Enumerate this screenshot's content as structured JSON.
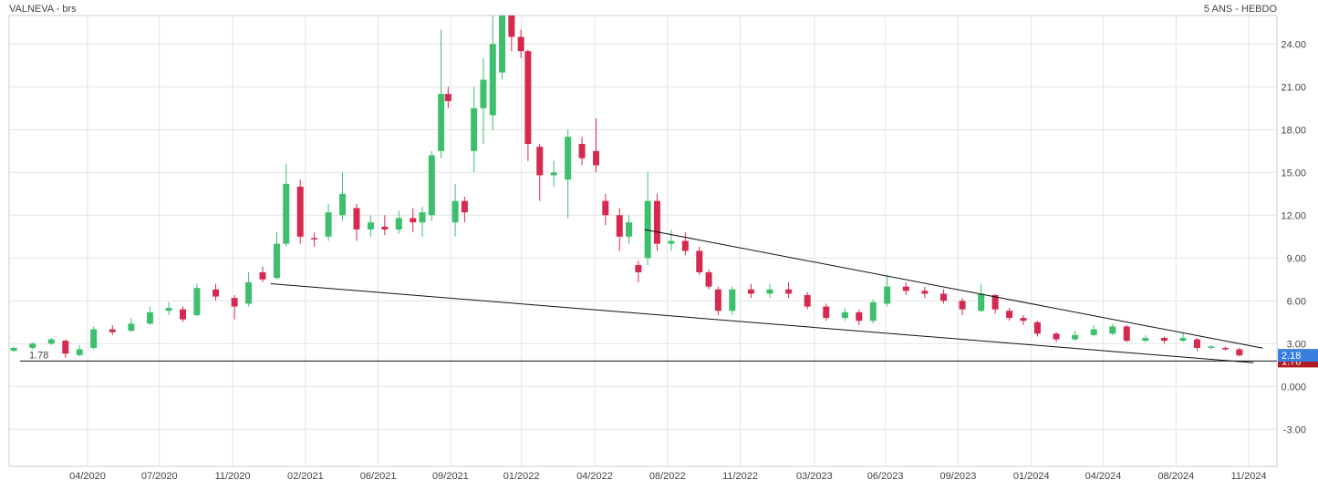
{
  "chart_data": {
    "type": "candlestick",
    "title": "VALNEVA - brs",
    "subtitle": "5 ANS - HEBDO",
    "x": [
      1,
      5,
      9,
      12,
      15,
      18,
      22,
      26,
      30,
      34,
      37,
      40,
      44,
      48,
      51,
      54,
      57,
      59,
      62,
      65,
      68,
      71,
      74,
      77,
      80,
      83,
      86,
      88,
      90,
      92,
      93.5,
      95,
      97,
      99,
      101,
      103,
      105,
      107,
      109,
      110.5,
      113,
      116,
      119,
      122,
      125,
      127,
      130,
      132,
      134,
      136,
      138,
      141,
      144,
      147,
      149,
      151,
      154,
      158,
      162,
      166,
      170,
      174,
      178,
      181,
      184,
      187,
      191,
      195,
      199,
      203,
      207,
      210,
      213,
      216,
      219,
      223,
      227,
      231,
      235,
      238,
      242,
      246,
      250,
      253,
      256,
      259,
      262
    ],
    "open": [
      2.5,
      2.7,
      3.0,
      3.2,
      2.2,
      2.7,
      4.0,
      3.9,
      4.4,
      5.3,
      5.4,
      5.0,
      6.8,
      6.2,
      5.8,
      8.0,
      7.6,
      10.0,
      14.0,
      10.4,
      10.5,
      12.0,
      12.5,
      11.0,
      11.2,
      11.0,
      11.8,
      11.5,
      12.0,
      16.5,
      20.5,
      11.5,
      13.0,
      16.5,
      19.5,
      19.0,
      22.0,
      26.0,
      24.5,
      23.5,
      16.8,
      14.8,
      14.5,
      17.0,
      16.5,
      13.0,
      12.0,
      10.5,
      8.5,
      9.0,
      13.0,
      10.0,
      10.2,
      9.5,
      8.0,
      6.8,
      5.3,
      6.8,
      6.5,
      6.8,
      6.4,
      5.6,
      4.8,
      5.2,
      4.6,
      5.8,
      7.0,
      6.7,
      6.5,
      6.0,
      5.3,
      6.4,
      5.3,
      4.8,
      4.5,
      3.7,
      3.3,
      3.6,
      3.7,
      4.2,
      3.2,
      3.4,
      3.2,
      3.3,
      2.7,
      2.7,
      2.6
    ],
    "close": [
      2.7,
      3.0,
      3.3,
      2.3,
      2.6,
      4.0,
      3.8,
      4.4,
      5.2,
      5.5,
      4.7,
      6.9,
      6.3,
      5.6,
      7.3,
      7.5,
      10.0,
      14.2,
      10.5,
      10.3,
      12.2,
      13.5,
      11.0,
      11.5,
      11.0,
      11.8,
      11.5,
      12.2,
      16.2,
      20.5,
      20.0,
      13.0,
      12.2,
      19.5,
      21.5,
      24.0,
      26.0,
      24.5,
      23.5,
      17.0,
      14.8,
      15.0,
      17.5,
      16.0,
      15.5,
      12.0,
      10.5,
      11.5,
      8.0,
      13.0,
      10.0,
      10.2,
      9.5,
      8.0,
      7.0,
      5.3,
      6.8,
      6.5,
      6.8,
      6.5,
      5.6,
      4.8,
      5.2,
      4.6,
      5.9,
      7.0,
      6.7,
      6.5,
      6.0,
      5.4,
      6.5,
      5.4,
      4.8,
      4.6,
      3.7,
      3.3,
      3.6,
      4.0,
      4.2,
      3.2,
      3.4,
      3.2,
      3.4,
      2.7,
      2.8,
      2.6,
      2.18
    ],
    "high": [
      2.8,
      3.1,
      3.4,
      3.3,
      2.9,
      4.2,
      4.3,
      4.8,
      5.6,
      5.9,
      5.6,
      7.2,
      7.2,
      6.4,
      8.0,
      8.4,
      10.8,
      15.6,
      14.5,
      10.8,
      12.8,
      15.0,
      12.8,
      12.0,
      12.0,
      12.3,
      12.5,
      12.6,
      16.5,
      25.0,
      21.0,
      14.2,
      13.3,
      21.0,
      23.0,
      26.0,
      26.0,
      26.0,
      25.0,
      23.6,
      17.0,
      15.8,
      18.0,
      17.5,
      18.8,
      13.5,
      12.5,
      12.0,
      8.8,
      15.0,
      13.5,
      11.0,
      10.8,
      9.8,
      8.2,
      7.0,
      7.0,
      7.2,
      7.2,
      7.3,
      6.6,
      5.8,
      5.5,
      5.4,
      6.1,
      7.8,
      7.3,
      7.0,
      6.8,
      6.2,
      7.2,
      6.5,
      5.5,
      5.0,
      4.6,
      3.8,
      3.9,
      4.3,
      4.4,
      4.3,
      3.6,
      3.5,
      3.8,
      3.4,
      2.9,
      2.8,
      2.7
    ],
    "low": [
      2.4,
      2.6,
      2.9,
      2.0,
      2.1,
      2.6,
      3.6,
      3.8,
      4.3,
      5.0,
      4.5,
      4.9,
      6.0,
      4.7,
      5.6,
      7.3,
      7.5,
      9.8,
      10.0,
      9.8,
      10.2,
      11.6,
      10.2,
      10.5,
      10.6,
      10.7,
      10.8,
      10.5,
      11.6,
      16.0,
      19.5,
      10.5,
      11.5,
      15.0,
      17.0,
      18.0,
      21.5,
      23.5,
      23.0,
      15.8,
      13.0,
      14.0,
      11.8,
      15.5,
      15.0,
      11.3,
      9.5,
      10.0,
      7.3,
      8.5,
      9.5,
      9.5,
      9.2,
      7.8,
      6.8,
      5.0,
      5.0,
      6.2,
      6.2,
      6.2,
      5.4,
      4.6,
      4.6,
      4.3,
      4.4,
      5.6,
      6.4,
      6.2,
      5.8,
      5.0,
      5.2,
      5.1,
      4.6,
      4.3,
      3.5,
      3.1,
      3.2,
      3.5,
      3.6,
      3.1,
      3.1,
      3.0,
      3.1,
      2.5,
      2.6,
      2.5,
      2.1
    ],
    "up_color": "#3dbf6e",
    "down_color": "#d6294f",
    "xlim": [
      0,
      270
    ],
    "ylim": [
      -5.6,
      26
    ],
    "xticks": [
      {
        "value": 16.7,
        "label": "04/2020"
      },
      {
        "value": 32,
        "label": "07/2020"
      },
      {
        "value": 47.6,
        "label": "11/2020"
      },
      {
        "value": 63.1,
        "label": "02/2021"
      },
      {
        "value": 78.6,
        "label": "06/2021"
      },
      {
        "value": 94,
        "label": "09/2021"
      },
      {
        "value": 109.1,
        "label": "01/2022"
      },
      {
        "value": 124.7,
        "label": "04/2022"
      },
      {
        "value": 140.2,
        "label": "08/2022"
      },
      {
        "value": 155.7,
        "label": "11/2022"
      },
      {
        "value": 171.5,
        "label": "03/2023"
      },
      {
        "value": 186.6,
        "label": "06/2023"
      },
      {
        "value": 202.1,
        "label": "09/2023"
      },
      {
        "value": 217.7,
        "label": "01/2024"
      },
      {
        "value": 233,
        "label": "04/2024"
      },
      {
        "value": 248.5,
        "label": "08/2024"
      },
      {
        "value": 264,
        "label": "11/2024"
      }
    ],
    "yticks": [
      {
        "value": -3,
        "label": "-3.00"
      },
      {
        "value": 0,
        "label": "0.000"
      },
      {
        "value": 3,
        "label": "3.00"
      },
      {
        "value": 6,
        "label": "6.00"
      },
      {
        "value": 9,
        "label": "9.00"
      },
      {
        "value": 12,
        "label": "12.00"
      },
      {
        "value": 15,
        "label": "15.00"
      },
      {
        "value": 18,
        "label": "18.00"
      },
      {
        "value": 21,
        "label": "21.00"
      },
      {
        "value": 24,
        "label": "24.00"
      }
    ],
    "grid": true,
    "trendlines": [
      {
        "x": [
          55.7,
          265
        ],
        "y": [
          7.2,
          1.66
        ]
      },
      {
        "x": [
          135.3,
          267
        ],
        "y": [
          11.0,
          2.68
        ]
      }
    ],
    "hline": 1.78,
    "hline_color": "#b01c22",
    "last_price": 2.18,
    "last_color": "#3a7fe0"
  }
}
